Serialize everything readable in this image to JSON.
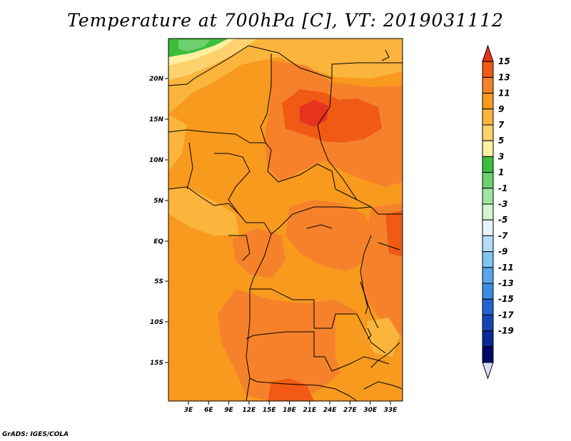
{
  "title": "Temperature at 700hPa [C], VT: 2019031112",
  "credit": "GrADS: IGES/COLA",
  "lat_labels": [
    "20N",
    "15N",
    "10N",
    "5N",
    "EQ",
    "5S",
    "10S",
    "15S"
  ],
  "lon_labels": [
    "3E",
    "6E",
    "9E",
    "12E",
    "15E",
    "18E",
    "21E",
    "24E",
    "27E",
    "30E",
    "33E"
  ],
  "colorbar": {
    "labels": [
      "15",
      "13",
      "11",
      "9",
      "7",
      "5",
      "3",
      "1",
      "-1",
      "-3",
      "-5",
      "-7",
      "-9",
      "-11",
      "-13",
      "-15",
      "-17",
      "-19"
    ],
    "colors": [
      "#e8321e",
      "#f05a14",
      "#f5822a",
      "#f89a1e",
      "#fbb43c",
      "#fdd26e",
      "#fef0a0",
      "#3cbe3c",
      "#6ed06e",
      "#a0e6a0",
      "#d2f5d2",
      "#e6f5fa",
      "#b4dcf5",
      "#82c3f0",
      "#5aa5eb",
      "#3c8ce1",
      "#2364d2",
      "#1446b4",
      "#0a2896",
      "#000a64",
      "#dcdcfa"
    ]
  },
  "map_colors": {
    "c7": "#fbb43c",
    "c9": "#f89a1e",
    "c11": "#f5822a",
    "c13": "#f05a14",
    "c15": "#e8321e",
    "c5": "#fdd26e",
    "c3": "#fef0a0",
    "c1": "#3cbe3c",
    "cm1": "#6ed06e"
  }
}
